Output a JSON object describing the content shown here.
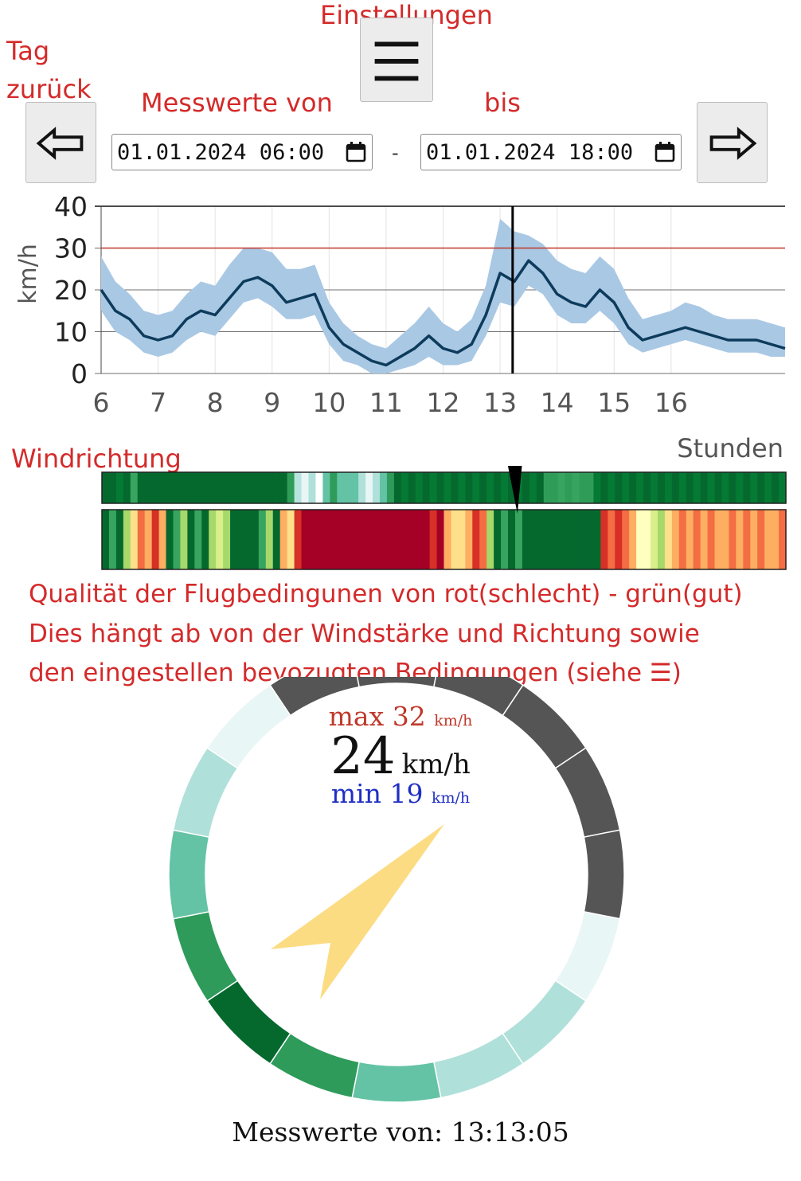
{
  "annotations": {
    "settings": "Einstellungen",
    "day_back": "Tag\nzurück",
    "from": "Messwerte von",
    "to": "bis",
    "wind_direction": "Windrichtung",
    "quality_line1": "Qualität der Flugbedingunen von rot(schlecht) - grün(gut)",
    "quality_line2": "Dies  hängt ab von der Windstärke und Richtung sowie",
    "quality_line3": "den eingestellen bevozugten Bedingungen (siehe ☰)"
  },
  "toolbar": {
    "menu_icon": "hamburger-icon",
    "prev_icon": "arrow-left-icon",
    "next_icon": "arrow-right-icon",
    "from_value": "01.01.2024 06:00",
    "to_value": "01.01.2024 18:00",
    "separator": "-"
  },
  "chart_data": {
    "type": "line",
    "ylabel": "km/h",
    "xlabel": "Stunden",
    "ylim": [
      0,
      40
    ],
    "xlim": [
      6,
      18
    ],
    "yticks": [
      "0",
      "10",
      "20",
      "30",
      "40"
    ],
    "xticks": [
      "6",
      "7",
      "8",
      "9",
      "10",
      "11",
      "12",
      "13",
      "14",
      "15",
      "16"
    ],
    "threshold": 30,
    "threshold_color": "#c0392b",
    "cursor_x": 13.22,
    "series": [
      {
        "line_color": "#0d3b5c",
        "band_color": "#a9c8e4",
        "x": [
          6.0,
          6.25,
          6.5,
          6.75,
          7.0,
          7.25,
          7.5,
          7.75,
          8.0,
          8.25,
          8.5,
          8.75,
          9.0,
          9.25,
          9.5,
          9.75,
          10.0,
          10.25,
          10.5,
          10.75,
          11.0,
          11.25,
          11.5,
          11.75,
          12.0,
          12.25,
          12.5,
          12.75,
          13.0,
          13.25,
          13.5,
          13.75,
          14.0,
          14.25,
          14.5,
          14.75,
          15.0,
          15.25,
          15.5,
          15.75,
          16.0,
          16.25,
          16.5,
          16.75,
          17.0,
          17.25,
          17.5,
          17.75,
          18.0
        ],
        "mean": [
          20,
          15,
          13,
          9,
          8,
          9,
          13,
          15,
          14,
          18,
          22,
          23,
          21,
          17,
          18,
          19,
          11,
          7,
          5,
          3,
          2,
          4,
          6,
          9,
          6,
          5,
          7,
          14,
          24,
          22,
          27,
          24,
          19,
          17,
          16,
          20,
          17,
          11,
          8,
          9,
          10,
          11,
          10,
          9,
          8,
          8,
          8,
          7,
          6
        ],
        "low": [
          15,
          10,
          8,
          5,
          4,
          5,
          8,
          10,
          9,
          13,
          17,
          18,
          16,
          13,
          13,
          14,
          7,
          3,
          2,
          0,
          0,
          1,
          2,
          4,
          2,
          2,
          3,
          9,
          17,
          16,
          21,
          19,
          14,
          12,
          12,
          15,
          12,
          7,
          5,
          6,
          7,
          8,
          7,
          6,
          5,
          5,
          5,
          4,
          4
        ],
        "high": [
          28,
          22,
          19,
          15,
          14,
          15,
          19,
          22,
          21,
          26,
          30,
          30,
          29,
          25,
          25,
          26,
          17,
          12,
          9,
          7,
          6,
          9,
          12,
          16,
          12,
          10,
          13,
          21,
          37,
          34,
          33,
          31,
          27,
          25,
          24,
          28,
          25,
          18,
          13,
          14,
          15,
          17,
          16,
          14,
          13,
          13,
          13,
          12,
          11
        ]
      }
    ]
  },
  "wind": {
    "bar1_colors": [
      "#05692e",
      "#05692e",
      "#057a34",
      "#05692e",
      "#37a55f",
      "#05692e",
      "#05692e",
      "#05692e",
      "#05692e",
      "#05692e",
      "#05692e",
      "#05692e",
      "#05692e",
      "#05692e",
      "#05692e",
      "#05692e",
      "#05692e",
      "#05692e",
      "#05692e",
      "#05692e",
      "#05692e",
      "#05692e",
      "#05692e",
      "#05692e",
      "#05692e",
      "#05692e",
      "#2f9d58",
      "#b9e3df",
      "#e8f6f5",
      "#b0e0da",
      "#ffffff",
      "#64c3a4",
      "#2e9b5b",
      "#64c3a4",
      "#64c3a4",
      "#64c3a4",
      "#b0e0da",
      "#e8f6f5",
      "#b0e0da",
      "#64c3a4",
      "#2e9b5b",
      "#05692e",
      "#057a34",
      "#05692e",
      "#057a34",
      "#05692e",
      "#057a34",
      "#05692e",
      "#057a34",
      "#05692e",
      "#057a34",
      "#05692e",
      "#057a34",
      "#05692e",
      "#057a34",
      "#05692e",
      "#057a34",
      "#05692e",
      "#057a34",
      "#05692e",
      "#057a34",
      "#05692e",
      "#2f9d58",
      "#2f9d58",
      "#37a55f",
      "#2f9d58",
      "#37a55f",
      "#2f9d58",
      "#2f9d58",
      "#057a34",
      "#05692e",
      "#057a34",
      "#05692e",
      "#057a34",
      "#05692e",
      "#057a34",
      "#05692e",
      "#057a34",
      "#05692e",
      "#057a34",
      "#05692e",
      "#057a34",
      "#05692e",
      "#057a34",
      "#05692e",
      "#057a34",
      "#05692e",
      "#057a34",
      "#05692e",
      "#057a34",
      "#05692e",
      "#057a34",
      "#05692e",
      "#057a34",
      "#05692e",
      "#057a34"
    ],
    "bar2_colors": [
      "#05692e",
      "#37a55f",
      "#05692e",
      "#a6d96a",
      "#fee08b",
      "#f46d43",
      "#fdae61",
      "#d73027",
      "#fdae61",
      "#05692e",
      "#37a55f",
      "#a6d96a",
      "#05692e",
      "#37a55f",
      "#05692e",
      "#a6d96a",
      "#d9ef8b",
      "#a6d96a",
      "#05692e",
      "#05692e",
      "#05692e",
      "#05692e",
      "#37a55f",
      "#a6d96a",
      "#05692e",
      "#fdae61",
      "#fee08b",
      "#d73027",
      "#a50026",
      "#a50026",
      "#a50026",
      "#a50026",
      "#a50026",
      "#a50026",
      "#a50026",
      "#a50026",
      "#a50026",
      "#a50026",
      "#a50026",
      "#a50026",
      "#a50026",
      "#a50026",
      "#a50026",
      "#a50026",
      "#a50026",
      "#a50026",
      "#d73027",
      "#a50026",
      "#fdae61",
      "#fee08b",
      "#fee08b",
      "#fdae61",
      "#d73027",
      "#f46d43",
      "#a6d96a",
      "#05692e",
      "#37a55f",
      "#05692e",
      "#37a55f",
      "#05692e",
      "#05692e",
      "#05692e",
      "#05692e",
      "#05692e",
      "#05692e",
      "#05692e",
      "#05692e",
      "#05692e",
      "#05692e",
      "#05692e",
      "#d73027",
      "#f46d43",
      "#d73027",
      "#f46d43",
      "#fdae61",
      "#ffffbf",
      "#ffffbf",
      "#d9ef8b",
      "#a6d96a",
      "#fee08b",
      "#fdae61",
      "#f46d43",
      "#fdae61",
      "#f46d43",
      "#fdae61",
      "#f46d43",
      "#fdae61",
      "#fdae61",
      "#f46d43",
      "#fdae61",
      "#f46d43",
      "#fdae61",
      "#f46d43",
      "#fdae61",
      "#fdae61",
      "#f46d43"
    ]
  },
  "gauge": {
    "max_label": "max",
    "max_value": "32",
    "max_unit": "km/h",
    "current_value": "24",
    "current_unit": "km/h",
    "min_label": "min",
    "min_value": "19",
    "min_unit": "km/h",
    "max_color": "#c0392b",
    "min_color": "#1f2fc4",
    "needle_color": "#fcdc82",
    "needle_angle_deg": 40,
    "ring_colors": [
      "#555555",
      "#555555",
      "#555555",
      "#555555",
      "#555555",
      "#555555",
      "#e8f6f5",
      "#b0e0da",
      "#b0e0da",
      "#64c3a4",
      "#2e9b5b",
      "#05692e",
      "#2e9b5b",
      "#64c3a4",
      "#b0e0da",
      "#e8f6f5"
    ]
  },
  "footer": {
    "label": "Messwerte von: 13:13:05"
  }
}
